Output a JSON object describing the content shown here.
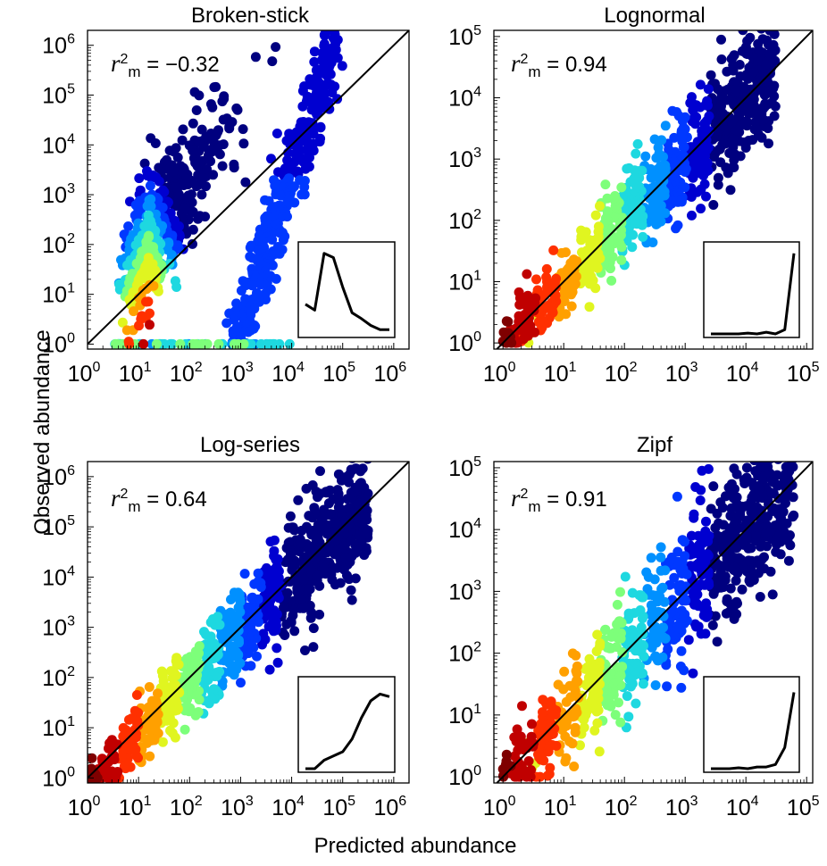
{
  "figure": {
    "xlabel": "Predicted abundance",
    "ylabel": "Observed abundance"
  },
  "chart_data": [
    {
      "type": "scatter",
      "title": "Broken-stick",
      "annotation": "r2m = -0.32",
      "r2_label": {
        "symbol": "r",
        "superscript": "2",
        "subscript": "m",
        "value": "= −0.32"
      },
      "scale": "log",
      "xlim_exp": [
        0,
        6.3
      ],
      "ylim_exp": [
        -0.1,
        6.3
      ],
      "x_ticks": [
        {
          "base": "10",
          "exp": "0"
        },
        {
          "base": "10",
          "exp": "1"
        },
        {
          "base": "10",
          "exp": "2"
        },
        {
          "base": "10",
          "exp": "3"
        },
        {
          "base": "10",
          "exp": "4"
        },
        {
          "base": "10",
          "exp": "5"
        },
        {
          "base": "10",
          "exp": "6"
        }
      ],
      "y_ticks": [
        {
          "base": "10",
          "exp": "0"
        },
        {
          "base": "10",
          "exp": "1"
        },
        {
          "base": "10",
          "exp": "2"
        },
        {
          "base": "10",
          "exp": "3"
        },
        {
          "base": "10",
          "exp": "4"
        },
        {
          "base": "10",
          "exp": "5"
        },
        {
          "base": "10",
          "exp": "6"
        }
      ],
      "reference_line": "1:1",
      "inset_curve": [
        0.35,
        0.28,
        0.95,
        0.9,
        0.55,
        0.25,
        0.18,
        0.1,
        0.05,
        0.05
      ]
    },
    {
      "type": "scatter",
      "title": "Lognormal",
      "annotation": "r2m = 0.94",
      "r2_label": {
        "symbol": "r",
        "superscript": "2",
        "subscript": "m",
        "value": "= 0.94"
      },
      "scale": "log",
      "xlim_exp": [
        -0.15,
        5.1
      ],
      "ylim_exp": [
        -0.1,
        5.1
      ],
      "x_ticks": [
        {
          "base": "10",
          "exp": "0"
        },
        {
          "base": "10",
          "exp": "1"
        },
        {
          "base": "10",
          "exp": "2"
        },
        {
          "base": "10",
          "exp": "3"
        },
        {
          "base": "10",
          "exp": "4"
        },
        {
          "base": "10",
          "exp": "5"
        }
      ],
      "y_ticks": [
        {
          "base": "10",
          "exp": "0"
        },
        {
          "base": "10",
          "exp": "1"
        },
        {
          "base": "10",
          "exp": "2"
        },
        {
          "base": "10",
          "exp": "3"
        },
        {
          "base": "10",
          "exp": "4"
        },
        {
          "base": "10",
          "exp": "5"
        }
      ],
      "reference_line": "1:1",
      "inset_curve": [
        0.0,
        0.0,
        0.0,
        0.0,
        0.01,
        0.0,
        0.02,
        0.0,
        0.05,
        0.95
      ]
    },
    {
      "type": "scatter",
      "title": "Log-series",
      "annotation": "r2m = 0.64",
      "r2_label": {
        "symbol": "r",
        "superscript": "2",
        "subscript": "m",
        "value": "= 0.64"
      },
      "scale": "log",
      "xlim_exp": [
        0,
        6.3
      ],
      "ylim_exp": [
        -0.1,
        6.3
      ],
      "x_ticks": [
        {
          "base": "10",
          "exp": "0"
        },
        {
          "base": "10",
          "exp": "1"
        },
        {
          "base": "10",
          "exp": "2"
        },
        {
          "base": "10",
          "exp": "3"
        },
        {
          "base": "10",
          "exp": "4"
        },
        {
          "base": "10",
          "exp": "5"
        },
        {
          "base": "10",
          "exp": "6"
        }
      ],
      "y_ticks": [
        {
          "base": "10",
          "exp": "0"
        },
        {
          "base": "10",
          "exp": "1"
        },
        {
          "base": "10",
          "exp": "2"
        },
        {
          "base": "10",
          "exp": "3"
        },
        {
          "base": "10",
          "exp": "4"
        },
        {
          "base": "10",
          "exp": "5"
        },
        {
          "base": "10",
          "exp": "6"
        }
      ],
      "reference_line": "1:1",
      "inset_curve": [
        0.0,
        0.0,
        0.1,
        0.15,
        0.2,
        0.35,
        0.6,
        0.8,
        0.88,
        0.85
      ]
    },
    {
      "type": "scatter",
      "title": "Zipf",
      "annotation": "r2m = 0.91",
      "r2_label": {
        "symbol": "r",
        "superscript": "2",
        "subscript": "m",
        "value": "= 0.91"
      },
      "scale": "log",
      "xlim_exp": [
        -0.15,
        5.1
      ],
      "ylim_exp": [
        -0.1,
        5.1
      ],
      "x_ticks": [
        {
          "base": "10",
          "exp": "0"
        },
        {
          "base": "10",
          "exp": "1"
        },
        {
          "base": "10",
          "exp": "2"
        },
        {
          "base": "10",
          "exp": "3"
        },
        {
          "base": "10",
          "exp": "4"
        },
        {
          "base": "10",
          "exp": "5"
        }
      ],
      "y_ticks": [
        {
          "base": "10",
          "exp": "0"
        },
        {
          "base": "10",
          "exp": "1"
        },
        {
          "base": "10",
          "exp": "2"
        },
        {
          "base": "10",
          "exp": "3"
        },
        {
          "base": "10",
          "exp": "4"
        },
        {
          "base": "10",
          "exp": "5"
        }
      ],
      "reference_line": "1:1",
      "inset_curve": [
        0.0,
        0.0,
        0.0,
        0.01,
        0.0,
        0.02,
        0.02,
        0.05,
        0.25,
        0.9
      ]
    }
  ],
  "colormap": [
    "#00007f",
    "#0000d0",
    "#0038ff",
    "#0090ff",
    "#1ed8e0",
    "#7dff7a",
    "#e0f520",
    "#ffa000",
    "#ff3000",
    "#c00000",
    "#7f0000"
  ]
}
